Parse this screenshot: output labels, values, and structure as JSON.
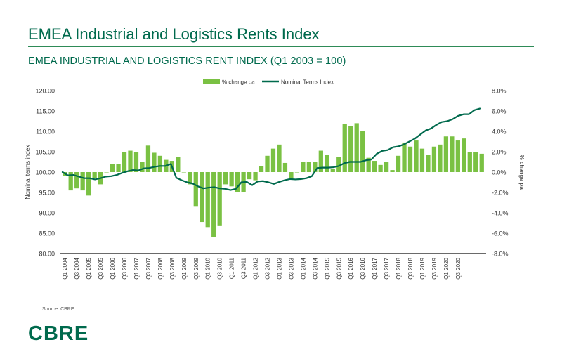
{
  "page": {
    "title": "EMEA Industrial and Logistics Rents Index",
    "source": "Source: CBRE",
    "logo_text": "CBRE",
    "brand_color": "#006a4d"
  },
  "chart_data": {
    "type": "bar+line",
    "title": "EMEA INDUSTRIAL AND LOGISTICS RENT INDEX (Q1 2003 = 100)",
    "ylabel_left": "Nominal terms index",
    "ylabel_right": "% change pa",
    "ylim_left": [
      80,
      120
    ],
    "ylim_right": [
      -8,
      8
    ],
    "yticks_left": [
      "120.00",
      "115.00",
      "110.00",
      "105.00",
      "100.00",
      "95.00",
      "90.00",
      "85.00",
      "80.00"
    ],
    "yticks_right": [
      "8.0%",
      "6.0%",
      "4.0%",
      "2.0%",
      "0.0%",
      "-2.0%",
      "-4.0%",
      "-6.0%",
      "-8.0%"
    ],
    "legend_position": "top-center",
    "grid": false,
    "x_tick_labels": [
      "Q1 2004",
      "Q3 2004",
      "Q1 2005",
      "Q3 2005",
      "Q1 2006",
      "Q3 2006",
      "Q1 2007",
      "Q3 2007",
      "Q1 2008",
      "Q3 2008",
      "Q1 2009",
      "Q3 2009",
      "Q1 2010",
      "Q3 2010",
      "Q1 2011",
      "Q3 2011",
      "Q1 2012",
      "Q3 2012",
      "Q1 2013",
      "Q3 2013",
      "Q1 2014",
      "Q3 2014",
      "Q1 2015",
      "Q3 2015",
      "Q1 2016",
      "Q3 2016",
      "Q1 2017",
      "Q3 2017",
      "Q1 2018",
      "Q3 2018",
      "Q1 2019",
      "Q3 2019",
      "Q1 2020",
      "Q3 2020"
    ],
    "series": [
      {
        "name": "% change pa",
        "kind": "bar",
        "color": "#7ac143",
        "values": [
          -0.4,
          -1.8,
          -1.6,
          -1.8,
          -2.3,
          -0.6,
          -1.2,
          0,
          0.8,
          0.8,
          2.0,
          2.1,
          2.0,
          1.0,
          2.6,
          1.9,
          1.6,
          1.2,
          1.1,
          1.5,
          0,
          -1.2,
          -3.4,
          -4.9,
          -5.4,
          -6.4,
          -5.3,
          -1.2,
          -1.4,
          -2.0,
          -2.0,
          -0.7,
          -0.8,
          0.6,
          1.6,
          2.3,
          2.7,
          0.9,
          -0.6,
          0,
          1.0,
          1.0,
          1.0,
          2.1,
          1.7,
          0.3,
          1.5,
          4.7,
          4.5,
          4.8,
          4.0,
          1.4,
          1.1,
          0.7,
          1.0,
          0.2,
          1.6,
          2.9,
          2.5,
          3.1,
          2.3,
          1.7,
          2.5,
          2.7,
          3.5,
          3.5,
          3.1,
          3.3,
          2.0,
          2.0,
          1.8
        ]
      },
      {
        "name": "Nominal Terms Index",
        "kind": "line",
        "color": "#006a4d",
        "values": [
          100.0,
          99.2,
          99.3,
          98.9,
          98.5,
          98.5,
          98.2,
          98.5,
          98.9,
          99.0,
          99.3,
          99.8,
          100.2,
          100.5,
          100.4,
          100.9,
          101.0,
          101.3,
          101.5,
          101.5,
          102.0,
          98.6,
          98.0,
          97.5,
          97.2,
          96.5,
          96.0,
          96.2,
          96.3,
          96.0,
          95.9,
          95.6,
          95.9,
          97.5,
          97.6,
          96.8,
          97.7,
          97.8,
          97.5,
          97.1,
          97.6,
          98.0,
          98.3,
          98.2,
          98.3,
          98.5,
          99.0,
          101.0,
          101.1,
          101.1,
          101.2,
          101.5,
          102.2,
          102.5,
          102.5,
          102.5,
          102.9,
          103.1,
          104.5,
          105.2,
          105.4,
          106.1,
          106.3,
          106.8,
          107.5,
          108.2,
          109.2,
          110.2,
          110.7,
          111.6,
          112.3,
          112.5,
          113.0,
          113.8,
          114.2,
          114.2,
          115.2,
          115.6
        ]
      }
    ]
  }
}
